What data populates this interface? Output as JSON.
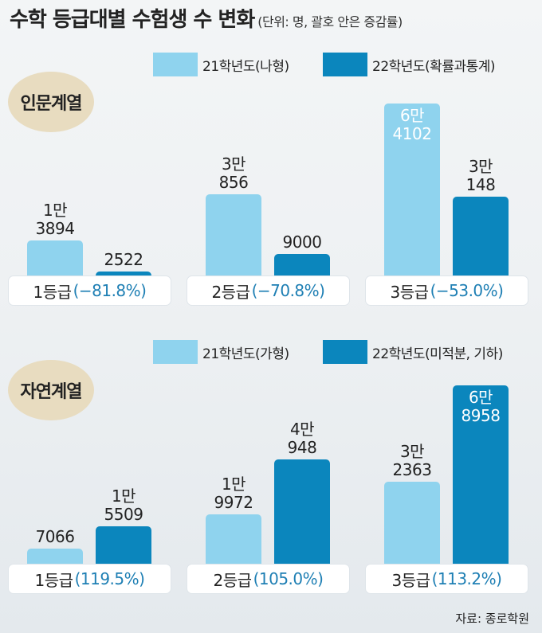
{
  "title": "수학 등급대별 수험생 수 변화",
  "subtitle": "(단위: 명, 괄호 안은 증감률)",
  "source": "자료: 종로학원",
  "colors": {
    "y21": "#8fd3ee",
    "y22": "#0b86bd",
    "pct": "#1e7fb4",
    "badge": "#e8dcc0"
  },
  "chart_data": [
    {
      "type": "bar",
      "title": "인문계열",
      "categories": [
        "1등급",
        "2등급",
        "3등급"
      ],
      "changes": [
        "(−81.8%)",
        "(−70.8%)",
        "(−53.0%)"
      ],
      "series": [
        {
          "name": "21학년도(나형)",
          "values": [
            13894,
            30856,
            64102
          ],
          "labels": [
            [
              "1만",
              "3894"
            ],
            [
              "3만",
              "856"
            ],
            [
              "6만",
              "4102"
            ]
          ]
        },
        {
          "name": "22학년도(확률과통계)",
          "values": [
            2522,
            9000,
            30148
          ],
          "labels": [
            [
              "2522"
            ],
            [
              "9000"
            ],
            [
              "3만",
              "148"
            ]
          ]
        }
      ]
    },
    {
      "type": "bar",
      "title": "자연계열",
      "categories": [
        "1등급",
        "2등급",
        "3등급"
      ],
      "changes": [
        "(119.5%)",
        "(105.0%)",
        "(113.2%)"
      ],
      "series": [
        {
          "name": "21학년도(가형)",
          "values": [
            7066,
            19972,
            32363
          ],
          "labels": [
            [
              "7066"
            ],
            [
              "1만",
              "9972"
            ],
            [
              "3만",
              "2363"
            ]
          ]
        },
        {
          "name": "22학년도(미적분, 기하)",
          "values": [
            15509,
            40948,
            68958
          ],
          "labels": [
            [
              "1만",
              "5509"
            ],
            [
              "4만",
              "948"
            ],
            [
              "6만",
              "8958"
            ]
          ]
        }
      ]
    }
  ]
}
